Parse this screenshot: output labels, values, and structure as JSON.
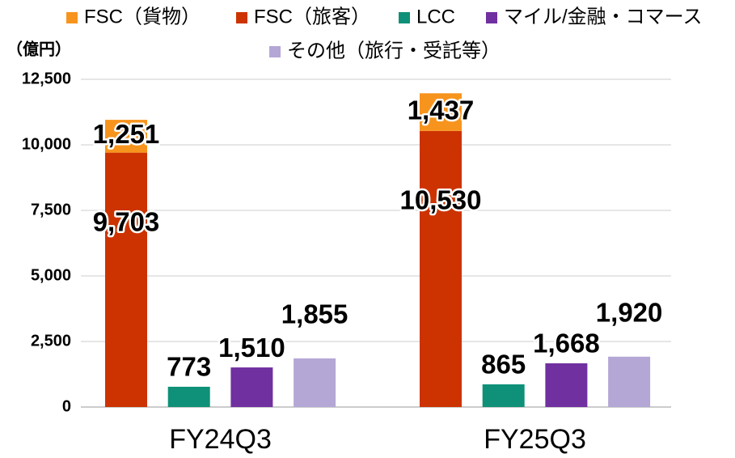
{
  "chart_data": {
    "type": "bar",
    "y_label": "（億円）",
    "categories": [
      "FY24Q3",
      "FY25Q3"
    ],
    "series": [
      {
        "name": "FSC（貨物）",
        "color": "#f7941d",
        "values": [
          1251,
          1437
        ],
        "value_labels": [
          "1,251",
          "1,437"
        ]
      },
      {
        "name": "FSC（旅客）",
        "color": "#cc3300",
        "values": [
          9703,
          10530
        ],
        "value_labels": [
          "9,703",
          "10,530"
        ]
      },
      {
        "name": "LCC",
        "color": "#0e9178",
        "values": [
          773,
          865
        ]
      },
      {
        "name": "マイル/金融・コマース",
        "color": "#7030a0",
        "values": [
          1510,
          1668
        ],
        "value_labels": [
          "1,510",
          "1,668"
        ]
      },
      {
        "name": "その他（旅行・受託等）",
        "color": "#b4a7d6",
        "values": [
          1855,
          1920
        ],
        "value_labels": [
          "1,855",
          "1,920"
        ]
      }
    ],
    "stacks": [
      [
        1,
        0
      ],
      [
        2
      ],
      [
        3
      ],
      [
        4
      ]
    ],
    "ylim": [
      0,
      12500
    ],
    "yticks": [
      0,
      {
        "value": 2500,
        "label": "2,500"
      },
      {
        "value": 5000,
        "label": "5,000"
      },
      {
        "value": 7500,
        "label": "7,500"
      },
      {
        "value": 10000,
        "label": "10,000"
      },
      {
        "value": 12500,
        "label": "12,500"
      }
    ],
    "grid": true
  }
}
